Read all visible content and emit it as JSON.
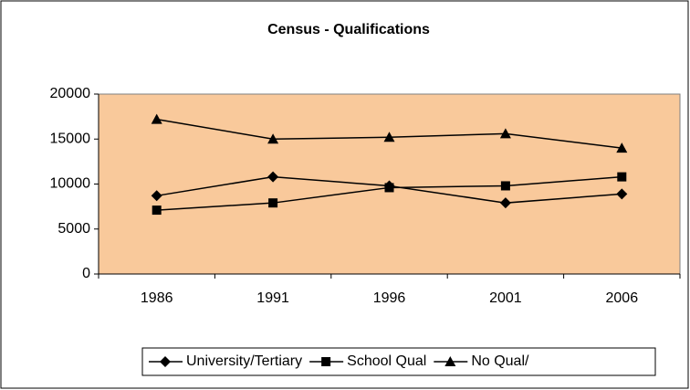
{
  "chart_data": {
    "type": "line",
    "title": "Census - Qualifications",
    "categories": [
      "1986",
      "1991",
      "1996",
      "2001",
      "2006"
    ],
    "series": [
      {
        "name": "University/Tertiary",
        "color": "#000000",
        "marker": "diamond",
        "values": [
          8700,
          10800,
          9800,
          7900,
          8900
        ]
      },
      {
        "name": "School Qual",
        "color": "#000000",
        "marker": "square",
        "values": [
          7100,
          7900,
          9600,
          9800,
          10800
        ]
      },
      {
        "name": "No Qual/",
        "color": "#000000",
        "marker": "triangle",
        "values": [
          17200,
          15000,
          15200,
          15600,
          14000
        ]
      }
    ],
    "ylim": [
      0,
      20000
    ],
    "yticks": [
      0,
      5000,
      10000,
      15000,
      20000
    ],
    "plot_background": "#f9c99b",
    "legend": "bottom"
  }
}
